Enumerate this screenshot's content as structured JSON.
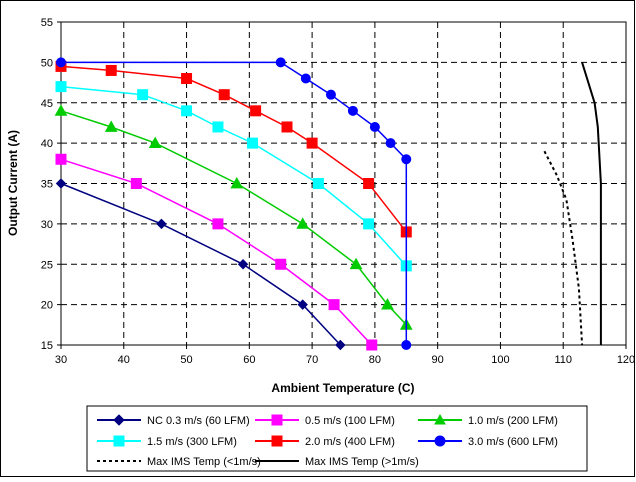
{
  "chart_data": {
    "type": "line",
    "title": "",
    "xlabel": "Ambient Temperature (C)",
    "ylabel": "Output Current (A)",
    "xlim": [
      30,
      120
    ],
    "ylim": [
      15,
      55
    ],
    "x_ticks": [
      "30",
      "40",
      "50",
      "60",
      "70",
      "80",
      "90",
      "100",
      "110",
      "120"
    ],
    "y_ticks": [
      "15",
      "20",
      "25",
      "30",
      "35",
      "40",
      "45",
      "50",
      "55"
    ],
    "grid": true,
    "legend_position": "bottom",
    "series": [
      {
        "name": "NC 0.3 m/s (60 LFM)",
        "color": "#000080",
        "marker": "diamond",
        "dash": "solid",
        "points": [
          [
            30,
            35
          ],
          [
            46,
            30
          ],
          [
            59,
            25
          ],
          [
            68.5,
            20
          ],
          [
            74.5,
            15
          ]
        ]
      },
      {
        "name": "0.5 m/s (100 LFM)",
        "color": "#ff00ff",
        "marker": "square",
        "dash": "solid",
        "points": [
          [
            30,
            38
          ],
          [
            42,
            35
          ],
          [
            55,
            30
          ],
          [
            65,
            25
          ],
          [
            73.5,
            20
          ],
          [
            79.5,
            15
          ]
        ]
      },
      {
        "name": "1.0 m/s (200 LFM)",
        "color": "#00cc00",
        "marker": "triangle",
        "dash": "solid",
        "points": [
          [
            30,
            44
          ],
          [
            38,
            42
          ],
          [
            45,
            40
          ],
          [
            58,
            35
          ],
          [
            68.5,
            30
          ],
          [
            77,
            25
          ],
          [
            82,
            20
          ],
          [
            85,
            17.5
          ]
        ]
      },
      {
        "name": "1.5 m/s (300 LFM)",
        "color": "#00ffff",
        "marker": "square",
        "dash": "solid",
        "points": [
          [
            30,
            47
          ],
          [
            43,
            46
          ],
          [
            50,
            44
          ],
          [
            55,
            42
          ],
          [
            60.5,
            40
          ],
          [
            71,
            35
          ],
          [
            79,
            30
          ],
          [
            85,
            24.8
          ]
        ]
      },
      {
        "name": "2.0 m/s (400 LFM)",
        "color": "#ff0000",
        "marker": "square",
        "dash": "solid",
        "points": [
          [
            30,
            49.5
          ],
          [
            38,
            49
          ],
          [
            50,
            48
          ],
          [
            56,
            46
          ],
          [
            61,
            44
          ],
          [
            66,
            42
          ],
          [
            70,
            40
          ],
          [
            79,
            35
          ],
          [
            85,
            29
          ]
        ]
      },
      {
        "name": "3.0 m/s (600 LFM)",
        "color": "#0000ff",
        "marker": "circle",
        "dash": "solid",
        "points": [
          [
            30,
            50
          ],
          [
            65,
            50
          ],
          [
            69,
            48
          ],
          [
            73,
            46
          ],
          [
            76.5,
            44
          ],
          [
            80,
            42
          ],
          [
            82.5,
            40
          ],
          [
            85,
            38
          ],
          [
            85,
            15
          ]
        ]
      },
      {
        "name": "Max IMS Temp (<1m/s)",
        "color": "#000000",
        "marker": "none",
        "dash": "dotted",
        "points": [
          [
            107,
            39
          ],
          [
            109,
            36
          ],
          [
            110.5,
            33
          ],
          [
            111.5,
            28
          ],
          [
            112.5,
            22
          ],
          [
            113,
            15
          ]
        ]
      },
      {
        "name": "Max IMS Temp (>1m/s)",
        "color": "#000000",
        "marker": "none",
        "dash": "solid",
        "points": [
          [
            113,
            50
          ],
          [
            115,
            45
          ],
          [
            115.5,
            42
          ],
          [
            116,
            35
          ],
          [
            116,
            25
          ],
          [
            116,
            15
          ]
        ]
      }
    ]
  }
}
